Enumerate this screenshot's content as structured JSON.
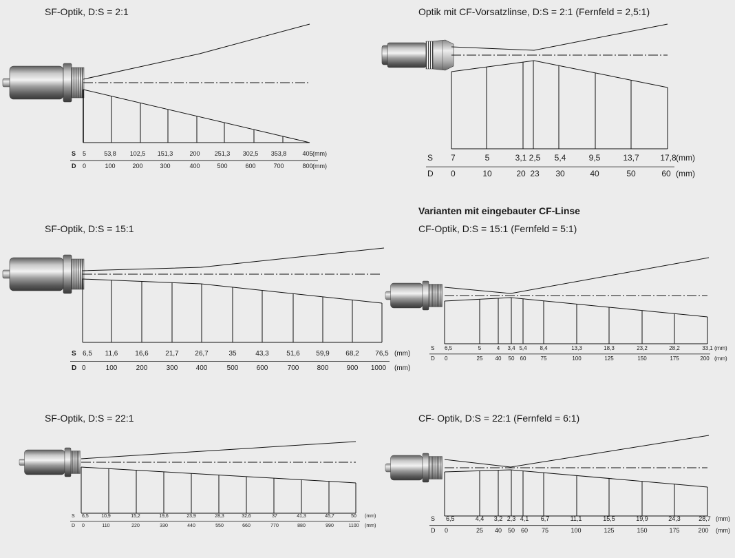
{
  "section_heading": "Varianten mit eingebauter CF-Linse",
  "unit": "(mm)",
  "row_label_s": "S",
  "row_label_d": "D",
  "diagrams": [
    {
      "id": "sf-2-1",
      "title": "SF-Optik, D:S = 2:1",
      "s_values": [
        "5",
        "53,8",
        "102,5",
        "151,3",
        "200",
        "251,3",
        "302,5",
        "353,8",
        "405"
      ],
      "d_values": [
        "0",
        "100",
        "200",
        "300",
        "400",
        "500",
        "600",
        "700",
        "800"
      ]
    },
    {
      "id": "cf-vorsatz-2-1",
      "title": "Optik mit CF-Vorsatzlinse, D:S = 2:1 (Fernfeld = 2,5:1)",
      "s_values": [
        "7",
        "5",
        "3,1",
        "2,5",
        "5,4",
        "9,5",
        "13,7",
        "17,8"
      ],
      "d_values": [
        "0",
        "10",
        "20",
        "23",
        "30",
        "40",
        "50",
        "60"
      ]
    },
    {
      "id": "sf-15-1",
      "title": "SF-Optik, D:S = 15:1",
      "s_values": [
        "6,5",
        "11,6",
        "16,6",
        "21,7",
        "26,7",
        "35",
        "43,3",
        "51,6",
        "59,9",
        "68,2",
        "76,5"
      ],
      "d_values": [
        "0",
        "100",
        "200",
        "300",
        "400",
        "500",
        "600",
        "700",
        "800",
        "900",
        "1000"
      ]
    },
    {
      "id": "cf-15-1",
      "title": "CF-Optik, D:S = 15:1 (Fernfeld = 5:1)",
      "s_values": [
        "6,5",
        "5",
        "4",
        "3,4",
        "5,4",
        "8,4",
        "13,3",
        "18,3",
        "23,2",
        "28,2",
        "33,1"
      ],
      "d_values": [
        "0",
        "25",
        "40",
        "50",
        "60",
        "75",
        "100",
        "125",
        "150",
        "175",
        "200"
      ]
    },
    {
      "id": "sf-22-1",
      "title": "SF-Optik, D:S = 22:1",
      "s_values": [
        "6,5",
        "10,9",
        "15,2",
        "19,6",
        "23,9",
        "28,3",
        "32,6",
        "37",
        "41,3",
        "45,7",
        "50"
      ],
      "d_values": [
        "0",
        "110",
        "220",
        "330",
        "440",
        "550",
        "660",
        "770",
        "880",
        "990",
        "1100"
      ]
    },
    {
      "id": "cf-22-1",
      "title": "CF- Optik, D:S = 22:1 (Fernfeld = 6:1)",
      "s_values": [
        "6,5",
        "4,4",
        "3,2",
        "2,3",
        "4,1",
        "6,7",
        "11,1",
        "15,5",
        "19,9",
        "24,3",
        "28,7"
      ],
      "d_values": [
        "0",
        "25",
        "40",
        "50",
        "60",
        "75",
        "100",
        "125",
        "150",
        "175",
        "200"
      ]
    }
  ]
}
